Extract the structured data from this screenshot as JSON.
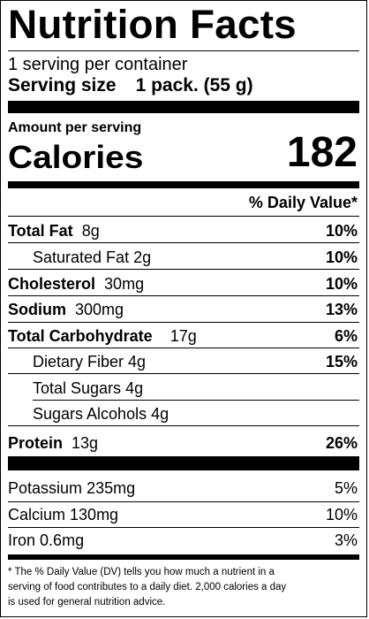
{
  "label": {
    "title": "Nutrition Facts",
    "servings_per_container": "1 serving per container",
    "serving_size_label": "Serving size",
    "serving_size_value": "1 pack. (55 g)",
    "amount_per_serving": "Amount per serving",
    "calories_label": "Calories",
    "calories_value": "182",
    "daily_value_header": "% Daily Value*",
    "nutrients": [
      {
        "name": "Total Fat",
        "amount": "8g",
        "dv": "10%"
      },
      {
        "name": "Saturated Fat",
        "amount": "2g",
        "dv": "10%"
      },
      {
        "name": "Cholesterol",
        "amount": "30mg",
        "dv": "10%"
      },
      {
        "name": "Sodium",
        "amount": "300mg",
        "dv": "13%"
      },
      {
        "name": "Total Carbohydrate",
        "amount": "17g",
        "dv": "6%"
      },
      {
        "name": "Dietary Fiber",
        "amount": "4g",
        "dv": "15%"
      },
      {
        "name": "Total Sugars",
        "amount": "4g",
        "dv": ""
      },
      {
        "name": "Sugars Alcohols",
        "amount": "4g",
        "dv": ""
      },
      {
        "name": "Protein",
        "amount": "13g",
        "dv": "26%"
      }
    ],
    "minerals": [
      {
        "name": "Potassium",
        "amount": "235mg",
        "dv": "5%"
      },
      {
        "name": "Calcium",
        "amount": "130mg",
        "dv": "10%"
      },
      {
        "name": "Iron",
        "amount": "0.6mg",
        "dv": "3%"
      }
    ],
    "footnote_line1": "* The % Daily Value (DV) tells you how much a nutrient in a",
    "footnote_line2": "serving of food contributes to a daily diet. 2,000 calories a day",
    "footnote_line3": "is used for general nutrition advice."
  }
}
